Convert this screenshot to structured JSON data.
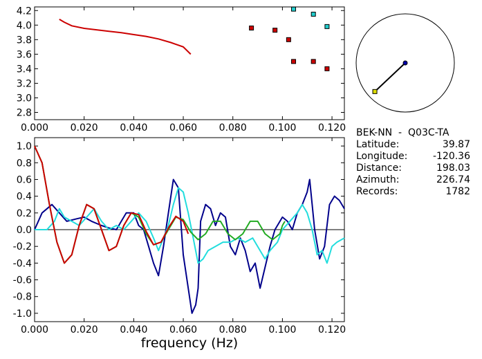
{
  "chart_data": [
    {
      "type": "scatter",
      "xlim": [
        0.0,
        0.125
      ],
      "ylim": [
        2.7,
        4.25
      ],
      "x_ticks": [
        0.0,
        0.02,
        0.04,
        0.06,
        0.08,
        0.1,
        0.12
      ],
      "x_tick_labels": [
        "0.000",
        "0.020",
        "0.040",
        "0.060",
        "0.080",
        "0.100",
        "0.120"
      ],
      "y_ticks": [
        2.8,
        3.0,
        3.2,
        3.4,
        3.6,
        3.8,
        4.0,
        4.2
      ],
      "y_tick_labels": [
        "2.8",
        "3.0",
        "3.2",
        "3.4",
        "3.6",
        "3.8",
        "4.0",
        "4.2"
      ],
      "curve": {
        "color": "#cc0000",
        "points": [
          [
            0.01,
            4.08
          ],
          [
            0.012,
            4.04
          ],
          [
            0.015,
            3.99
          ],
          [
            0.02,
            3.955
          ],
          [
            0.025,
            3.935
          ],
          [
            0.03,
            3.915
          ],
          [
            0.035,
            3.895
          ],
          [
            0.04,
            3.87
          ],
          [
            0.045,
            3.845
          ],
          [
            0.05,
            3.81
          ],
          [
            0.055,
            3.76
          ],
          [
            0.06,
            3.7
          ],
          [
            0.063,
            3.6
          ]
        ]
      },
      "series": [
        {
          "color": "#cc0000",
          "points": [
            [
              0.0875,
              3.96
            ],
            [
              0.097,
              3.93
            ],
            [
              0.1025,
              3.8
            ],
            [
              0.1045,
              3.5
            ],
            [
              0.1125,
              3.5
            ],
            [
              0.118,
              3.4
            ]
          ]
        },
        {
          "color": "#22cccc",
          "points": [
            [
              0.1045,
              4.22
            ],
            [
              0.1125,
              4.15
            ],
            [
              0.118,
              3.98
            ]
          ]
        }
      ]
    },
    {
      "type": "line",
      "xlim": [
        0.0,
        0.125
      ],
      "ylim": [
        -1.1,
        1.1
      ],
      "x_ticks": [
        0.0,
        0.02,
        0.04,
        0.06,
        0.08,
        0.1,
        0.12
      ],
      "x_tick_labels": [
        "0.000",
        "0.020",
        "0.040",
        "0.060",
        "0.080",
        "0.100",
        "0.120"
      ],
      "y_ticks": [
        -1.0,
        -0.8,
        -0.6,
        -0.4,
        -0.2,
        0.0,
        0.2,
        0.4,
        0.6,
        0.8,
        1.0
      ],
      "y_tick_labels": [
        "-1.0",
        "-0.8",
        "-0.6",
        "-0.4",
        "-0.2",
        "0.0",
        "0.2",
        "0.4",
        "0.6",
        "0.8",
        "1.0"
      ],
      "xlabel": "frequency (Hz)",
      "series": [
        {
          "color": "#00008b",
          "points": [
            [
              0,
              0.0
            ],
            [
              0.003,
              0.2
            ],
            [
              0.007,
              0.3
            ],
            [
              0.01,
              0.2
            ],
            [
              0.013,
              0.1
            ],
            [
              0.017,
              0.13
            ],
            [
              0.02,
              0.15
            ],
            [
              0.023,
              0.1
            ],
            [
              0.027,
              0.05
            ],
            [
              0.03,
              0.02
            ],
            [
              0.033,
              0.0
            ],
            [
              0.035,
              0.1
            ],
            [
              0.037,
              0.2
            ],
            [
              0.04,
              0.2
            ],
            [
              0.042,
              0.05
            ],
            [
              0.044,
              0.0
            ],
            [
              0.046,
              -0.2
            ],
            [
              0.048,
              -0.4
            ],
            [
              0.05,
              -0.55
            ],
            [
              0.052,
              -0.2
            ],
            [
              0.054,
              0.2
            ],
            [
              0.056,
              0.6
            ],
            [
              0.058,
              0.5
            ],
            [
              0.06,
              -0.3
            ],
            [
              0.062,
              -0.7
            ],
            [
              0.0635,
              -1.0
            ],
            [
              0.065,
              -0.9
            ],
            [
              0.066,
              -0.7
            ],
            [
              0.067,
              0.1
            ],
            [
              0.069,
              0.3
            ],
            [
              0.071,
              0.25
            ],
            [
              0.073,
              0.05
            ],
            [
              0.075,
              0.2
            ],
            [
              0.077,
              0.15
            ],
            [
              0.079,
              -0.2
            ],
            [
              0.081,
              -0.3
            ],
            [
              0.083,
              -0.1
            ],
            [
              0.085,
              -0.25
            ],
            [
              0.087,
              -0.5
            ],
            [
              0.089,
              -0.4
            ],
            [
              0.091,
              -0.7
            ],
            [
              0.093,
              -0.45
            ],
            [
              0.095,
              -0.2
            ],
            [
              0.097,
              0.0
            ],
            [
              0.1,
              0.15
            ],
            [
              0.102,
              0.1
            ],
            [
              0.104,
              0.0
            ],
            [
              0.106,
              0.2
            ],
            [
              0.108,
              0.3
            ],
            [
              0.11,
              0.45
            ],
            [
              0.111,
              0.6
            ],
            [
              0.112,
              0.3
            ],
            [
              0.113,
              0.0
            ],
            [
              0.115,
              -0.35
            ],
            [
              0.117,
              -0.2
            ],
            [
              0.119,
              0.3
            ],
            [
              0.121,
              0.4
            ],
            [
              0.123,
              0.35
            ],
            [
              0.125,
              0.25
            ]
          ]
        },
        {
          "color": "#22dddd",
          "points": [
            [
              0,
              0.0
            ],
            [
              0.003,
              0.0
            ],
            [
              0.005,
              0.0
            ],
            [
              0.008,
              0.1
            ],
            [
              0.01,
              0.25
            ],
            [
              0.012,
              0.15
            ],
            [
              0.015,
              0.1
            ],
            [
              0.018,
              0.05
            ],
            [
              0.021,
              0.15
            ],
            [
              0.024,
              0.25
            ],
            [
              0.027,
              0.1
            ],
            [
              0.03,
              0.0
            ],
            [
              0.033,
              0.05
            ],
            [
              0.036,
              0.0
            ],
            [
              0.039,
              0.1
            ],
            [
              0.042,
              0.2
            ],
            [
              0.045,
              0.1
            ],
            [
              0.048,
              -0.1
            ],
            [
              0.05,
              -0.25
            ],
            [
              0.052,
              -0.1
            ],
            [
              0.054,
              0.05
            ],
            [
              0.056,
              0.3
            ],
            [
              0.058,
              0.5
            ],
            [
              0.06,
              0.45
            ],
            [
              0.062,
              0.2
            ],
            [
              0.064,
              -0.1
            ],
            [
              0.066,
              -0.4
            ],
            [
              0.068,
              -0.35
            ],
            [
              0.07,
              -0.25
            ],
            [
              0.073,
              -0.2
            ],
            [
              0.076,
              -0.15
            ],
            [
              0.079,
              -0.15
            ],
            [
              0.082,
              -0.1
            ],
            [
              0.085,
              -0.15
            ],
            [
              0.088,
              -0.1
            ],
            [
              0.091,
              -0.25
            ],
            [
              0.093,
              -0.35
            ],
            [
              0.095,
              -0.25
            ],
            [
              0.098,
              -0.15
            ],
            [
              0.1,
              0.0
            ],
            [
              0.103,
              0.1
            ],
            [
              0.106,
              0.2
            ],
            [
              0.108,
              0.3
            ],
            [
              0.11,
              0.2
            ],
            [
              0.112,
              0.0
            ],
            [
              0.114,
              -0.3
            ],
            [
              0.116,
              -0.25
            ],
            [
              0.118,
              -0.4
            ],
            [
              0.12,
              -0.2
            ],
            [
              0.122,
              -0.15
            ],
            [
              0.125,
              -0.1
            ]
          ]
        },
        {
          "color": "#22aa22",
          "points": [
            [
              0,
              1.0
            ],
            [
              0.003,
              0.8
            ],
            [
              0.006,
              0.3
            ],
            [
              0.009,
              -0.15
            ],
            [
              0.012,
              -0.4
            ],
            [
              0.015,
              -0.3
            ],
            [
              0.018,
              0.05
            ],
            [
              0.021,
              0.3
            ],
            [
              0.024,
              0.25
            ],
            [
              0.027,
              0.0
            ],
            [
              0.03,
              -0.25
            ],
            [
              0.033,
              -0.2
            ],
            [
              0.036,
              0.05
            ],
            [
              0.039,
              0.2
            ],
            [
              0.042,
              0.15
            ],
            [
              0.045,
              -0.05
            ],
            [
              0.048,
              -0.18
            ],
            [
              0.051,
              -0.15
            ],
            [
              0.054,
              0.0
            ],
            [
              0.057,
              0.15
            ],
            [
              0.06,
              0.12
            ],
            [
              0.063,
              -0.03
            ],
            [
              0.066,
              -0.12
            ],
            [
              0.069,
              -0.05
            ],
            [
              0.072,
              0.1
            ],
            [
              0.075,
              0.1
            ],
            [
              0.078,
              -0.05
            ],
            [
              0.081,
              -0.12
            ],
            [
              0.084,
              -0.05
            ],
            [
              0.087,
              0.1
            ],
            [
              0.09,
              0.1
            ],
            [
              0.093,
              -0.05
            ],
            [
              0.096,
              -0.12
            ],
            [
              0.099,
              -0.05
            ],
            [
              0.1,
              0.05
            ],
            [
              0.101,
              0.1
            ]
          ]
        },
        {
          "color": "#cc0000",
          "points": [
            [
              0,
              1.0
            ],
            [
              0.003,
              0.8
            ],
            [
              0.006,
              0.3
            ],
            [
              0.009,
              -0.15
            ],
            [
              0.012,
              -0.4
            ],
            [
              0.015,
              -0.3
            ],
            [
              0.018,
              0.05
            ],
            [
              0.021,
              0.3
            ],
            [
              0.024,
              0.25
            ],
            [
              0.027,
              0.0
            ],
            [
              0.03,
              -0.25
            ],
            [
              0.033,
              -0.2
            ],
            [
              0.036,
              0.05
            ],
            [
              0.039,
              0.2
            ],
            [
              0.042,
              0.18
            ],
            [
              0.045,
              -0.02
            ],
            [
              0.048,
              -0.18
            ],
            [
              0.051,
              -0.15
            ],
            [
              0.054,
              0.02
            ],
            [
              0.057,
              0.16
            ],
            [
              0.06,
              0.1
            ],
            [
              0.062,
              -0.05
            ]
          ]
        }
      ]
    }
  ],
  "info": {
    "station": "BEK-NN  -  Q03C-TA",
    "rows": [
      {
        "label": "Latitude:",
        "value": "39.87"
      },
      {
        "label": "Longitude:",
        "value": "-120.36"
      },
      {
        "label": "Distance:",
        "value": "198.03"
      },
      {
        "label": "Azimuth:",
        "value": "226.74"
      },
      {
        "label": "Records:",
        "value": "1782"
      }
    ]
  },
  "azimuth_plot": {
    "azimuth_deg": 226.74,
    "radius_fraction": 0.85,
    "center_color": "#0000aa",
    "end_color": "#dddd00"
  }
}
